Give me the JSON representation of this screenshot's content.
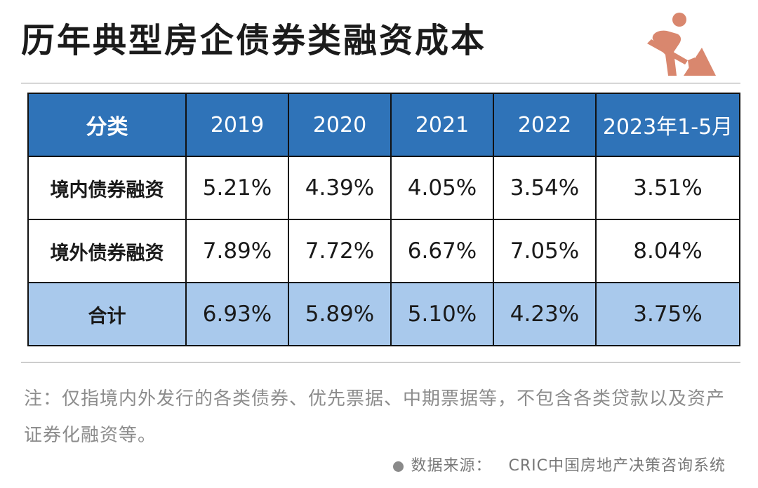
{
  "header": {
    "title": "历年典型房企债券类融资成本",
    "icon": "construction-worker-icon",
    "icon_color": "#d9876e"
  },
  "table": {
    "columns": [
      "分类",
      "2019",
      "2020",
      "2021",
      "2022",
      "2023年1-5月"
    ],
    "rows": [
      {
        "label": "境内债券融资",
        "values": [
          "5.21%",
          "4.39%",
          "4.05%",
          "3.54%",
          "3.51%"
        ]
      },
      {
        "label": "境外债券融资",
        "values": [
          "7.89%",
          "7.72%",
          "6.67%",
          "7.05%",
          "8.04%"
        ]
      },
      {
        "label": "合计",
        "values": [
          "6.93%",
          "5.89%",
          "5.10%",
          "4.23%",
          "3.75%"
        ]
      }
    ],
    "header_color": "#2f73b8",
    "total_row_color": "#a9c9ec"
  },
  "note": "注：仅指境内外发行的各类债券、优先票据、中期票据等，不包含各类贷款以及资产证券化融资等。",
  "source": {
    "label": "数据来源：",
    "name": "CRIC中国房地产决策咨询系统"
  }
}
